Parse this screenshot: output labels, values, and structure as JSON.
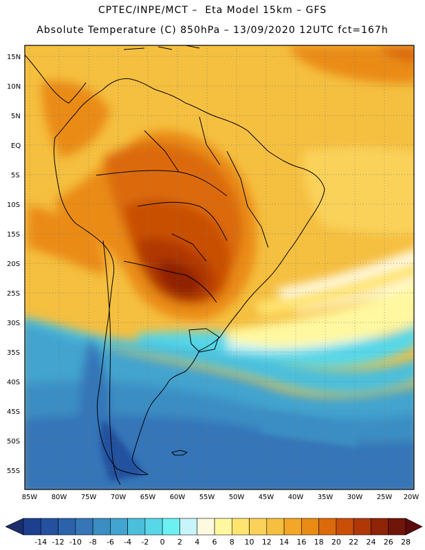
{
  "header": {
    "line1": "CPTEC/INPE/MCT –  Eta Model 15km – GFS",
    "line2": "Absolute Temperature (C) 850hPa – 13/09/2020 12UTC fct=167h"
  },
  "map": {
    "lat_labels": [
      "15N",
      "10N",
      "5N",
      "EQ",
      "5S",
      "10S",
      "15S",
      "20S",
      "25S",
      "30S",
      "35S",
      "40S",
      "45S",
      "50S",
      "55S"
    ],
    "lon_labels": [
      "85W",
      "80W",
      "75W",
      "70W",
      "65W",
      "60W",
      "55W",
      "50W",
      "45W",
      "40W",
      "35W",
      "30W",
      "25W",
      "20W"
    ]
  },
  "colorbar": {
    "ticks": [
      "-14",
      "-12",
      "-10",
      "-8",
      "-6",
      "-4",
      "-2",
      "0",
      "2",
      "4",
      "6",
      "8",
      "10",
      "12",
      "14",
      "16",
      "18",
      "20",
      "22",
      "24",
      "26",
      "28"
    ],
    "colors": [
      "#1d3f8f",
      "#24519f",
      "#2c62ab",
      "#3575b8",
      "#3b8ec4",
      "#42a4cf",
      "#4bbfdc",
      "#57d7e8",
      "#6cf0f2",
      "#c7f5fb",
      "#fff9e0",
      "#fff8a0",
      "#ffe470",
      "#fad25a",
      "#f5bf40",
      "#f3a628",
      "#ea8b14",
      "#dc6a0a",
      "#c94f06",
      "#b03806",
      "#8f2406",
      "#6f1608"
    ],
    "under_color": "#1c2d6e",
    "over_color": "#5a0b10"
  }
}
